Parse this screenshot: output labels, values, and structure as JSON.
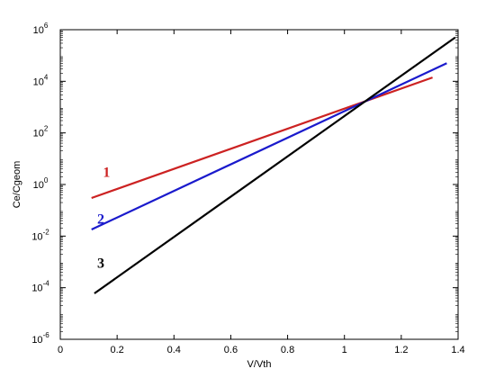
{
  "chart_data": {
    "type": "line",
    "xlabel": "V/Vth",
    "ylabel": "Ce/Cgeom",
    "xlim": [
      0,
      1.4
    ],
    "ylim": [
      1e-06,
      1000000.0
    ],
    "yscale": "log",
    "grid": false,
    "x_ticks": [
      0,
      0.2,
      0.4,
      0.6,
      0.8,
      1,
      1.2,
      1.4
    ],
    "x_tick_labels": [
      "0",
      "0.2",
      "0.4",
      "0.6",
      "0.8",
      "1",
      "1.2",
      "1.4"
    ],
    "y_ticks": [
      {
        "value": 1000000.0,
        "base": "10",
        "exp": "6"
      },
      {
        "value": 10000.0,
        "base": "10",
        "exp": "4"
      },
      {
        "value": 100.0,
        "base": "10",
        "exp": "2"
      },
      {
        "value": 1.0,
        "base": "10",
        "exp": "0"
      },
      {
        "value": 0.01,
        "base": "10",
        "exp": "-2"
      },
      {
        "value": 0.0001,
        "base": "10",
        "exp": "-4"
      },
      {
        "value": 1e-06,
        "base": "10",
        "exp": "-6"
      }
    ],
    "series": [
      {
        "label": "1",
        "color": "#cc2222",
        "x": [
          0.11,
          1.31
        ],
        "y": [
          0.3,
          14000
        ],
        "label_at": {
          "x": 0.15,
          "y": 2
        }
      },
      {
        "label": "2",
        "color": "#1a1acc",
        "x": [
          0.11,
          1.36
        ],
        "y": [
          0.018,
          50000
        ],
        "label_at": {
          "x": 0.13,
          "y": 0.03
        }
      },
      {
        "label": "3",
        "color": "#000000",
        "x": [
          0.12,
          1.39
        ],
        "y": [
          6e-05,
          500000
        ],
        "label_at": {
          "x": 0.13,
          "y": 0.0006
        }
      }
    ]
  }
}
